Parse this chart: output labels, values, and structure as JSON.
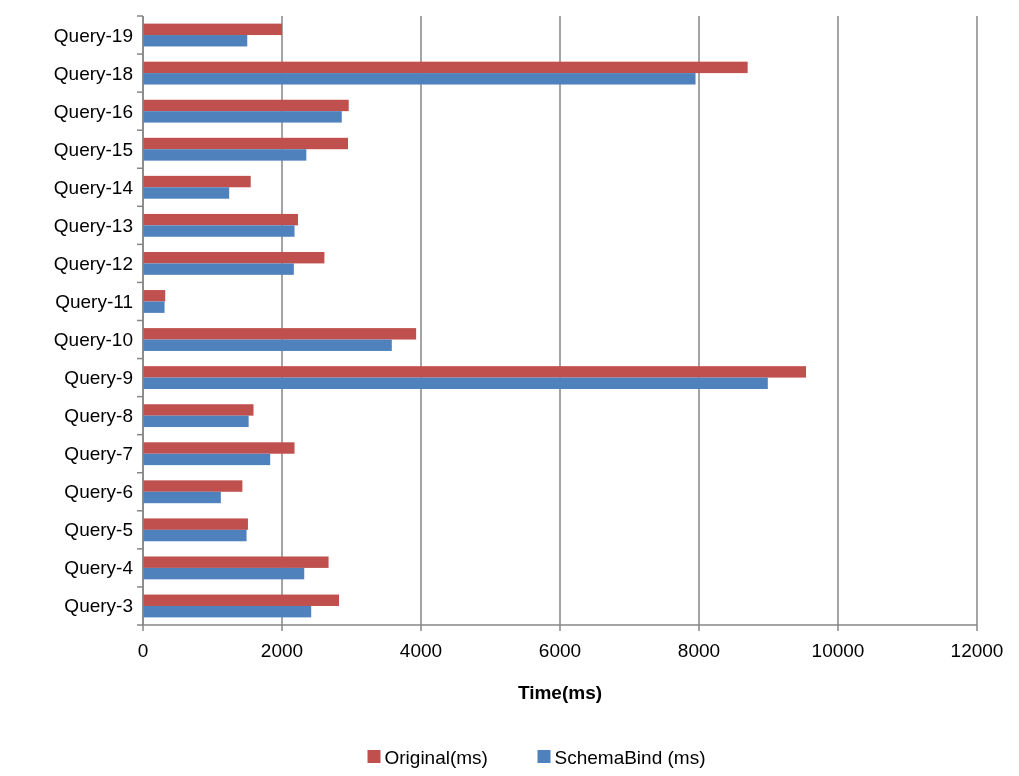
{
  "chart_data": {
    "type": "bar",
    "orientation": "horizontal",
    "xlabel": "Time(ms)",
    "categories": [
      "Query-19",
      "Query-18",
      "Query-16",
      "Query-15",
      "Query-14",
      "Query-13",
      "Query-12",
      "Query-11",
      "Query-10",
      "Query-9",
      "Query-8",
      "Query-7",
      "Query-6",
      "Query-5",
      "Query-4",
      "Query-3"
    ],
    "series": [
      {
        "name": "Original(ms)",
        "color": "#c0504d",
        "values": [
          2000,
          8700,
          2960,
          2950,
          1550,
          2230,
          2610,
          320,
          3930,
          9540,
          1590,
          2180,
          1430,
          1510,
          2670,
          2820
        ]
      },
      {
        "name": "SchemaBind (ms)",
        "color": "#4f81bd",
        "values": [
          1500,
          7950,
          2860,
          2350,
          1240,
          2180,
          2170,
          310,
          3580,
          8990,
          1520,
          1830,
          1120,
          1490,
          2320,
          2420
        ]
      }
    ],
    "xlim": [
      0,
      12000
    ],
    "xticks": [
      0,
      2000,
      4000,
      6000,
      8000,
      10000,
      12000
    ],
    "grid": "x",
    "legend": "bottom"
  }
}
